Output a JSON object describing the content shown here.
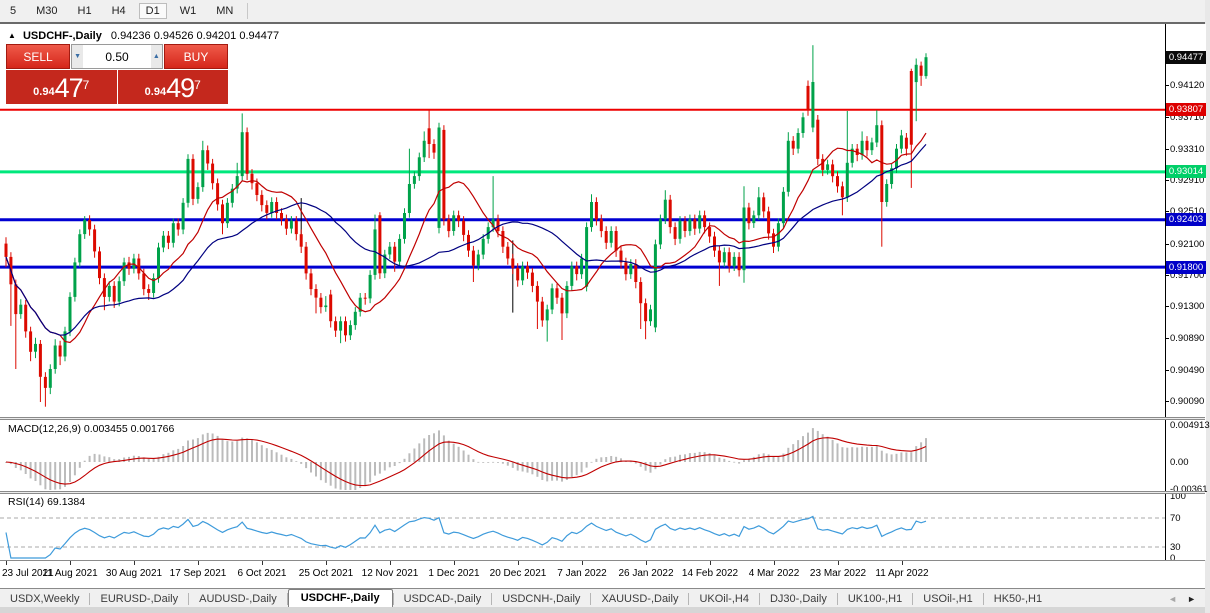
{
  "toolbar": {
    "timeframes": [
      {
        "label": "5",
        "active": false
      },
      {
        "label": "M30",
        "active": false
      },
      {
        "label": "H1",
        "active": false
      },
      {
        "label": "H4",
        "active": false
      },
      {
        "label": "D1",
        "active": true
      },
      {
        "label": "W1",
        "active": false
      },
      {
        "label": "MN",
        "active": false
      }
    ]
  },
  "chart": {
    "title_marker": "▲",
    "symbol_title": "USDCHF-,Daily",
    "ohlc_string": "0.94236 0.94526 0.94201 0.94477",
    "trade_panel": {
      "sell_label": "SELL",
      "buy_label": "BUY",
      "volume": "0.50",
      "down_glyph": "▼",
      "up_glyph": "▲",
      "sell_small": "0.94",
      "sell_big": "47",
      "sell_sup": "7",
      "buy_small": "0.94",
      "buy_big": "49",
      "buy_sup": "7"
    }
  },
  "chart_data": {
    "type": "candlestick+indicators",
    "symbol": "USDCHF-",
    "timeframe": "Daily",
    "current_bar": {
      "open": 0.94236,
      "high": 0.94526,
      "low": 0.94201,
      "close": 0.94477
    },
    "y_range": [
      0.8985,
      0.949
    ],
    "price_axis_ticks": [
      "0.94120",
      "0.93710",
      "0.93310",
      "0.92910",
      "0.92510",
      "0.92100",
      "0.91700",
      "0.91300",
      "0.90890",
      "0.90490",
      "0.90090"
    ],
    "price_badges": [
      {
        "text": "0.94477",
        "price": 0.94477,
        "bg": "#0a0a0a"
      },
      {
        "text": "0.93807",
        "price": 0.93807,
        "bg": "#dd0000"
      },
      {
        "text": "0.93014",
        "price": 0.93014,
        "bg": "#00cf68"
      },
      {
        "text": "0.92403",
        "price": 0.92403,
        "bg": "#0000c8"
      },
      {
        "text": "0.91800",
        "price": 0.918,
        "bg": "#0000c8"
      }
    ],
    "hlines": [
      {
        "price": 0.93807,
        "color": "#ee0000",
        "width": 2
      },
      {
        "price": 0.93014,
        "color": "#00e87c",
        "width": 3
      },
      {
        "price": 0.92403,
        "color": "#0000d2",
        "width": 3
      },
      {
        "price": 0.918,
        "color": "#0000d2",
        "width": 3
      }
    ],
    "vline_segments": [
      {
        "x_index": 60,
        "p1": 0.9268,
        "p2": 0.9215
      },
      {
        "x_index": 103,
        "p1": 0.9214,
        "p2": 0.9122
      }
    ],
    "colors": {
      "bull": "#00a24a",
      "bear": "#dc0a00",
      "ma_fast": "#c00000",
      "ma_slow": "#000080",
      "macd_hist": "#bbbbbb",
      "macd_signal": "#c00000",
      "rsi_line": "#3e9bdb"
    },
    "ma_periods": {
      "fast": 12,
      "slow": 30
    },
    "x_tick_labels": [
      "23 Jul 2021",
      "11 Aug 2021",
      "30 Aug 2021",
      "17 Sep 2021",
      "6 Oct 2021",
      "25 Oct 2021",
      "12 Nov 2021",
      "1 Dec 2021",
      "20 Dec 2021",
      "7 Jan 2022",
      "26 Jan 2022",
      "14 Feb 2022",
      "4 Mar 2022",
      "23 Mar 2022",
      "11 Apr 2022"
    ],
    "macd": {
      "label": "MACD(12,26,9) 0.003455 0.001766",
      "params": [
        12,
        26,
        9
      ],
      "current_values": [
        "0.003455",
        "0.001766"
      ],
      "scale_labels": [
        "0.004913",
        "0.00",
        "-0.00361"
      ]
    },
    "rsi": {
      "label": "RSI(14) 69.1384",
      "period": 14,
      "current_value": "69.1384",
      "levels": [
        100,
        70,
        30,
        0
      ]
    },
    "candles": [
      [
        0.921,
        0.9218,
        0.918,
        0.9193
      ],
      [
        0.9193,
        0.9199,
        0.9105,
        0.9158
      ],
      [
        0.9158,
        0.9164,
        0.905,
        0.912
      ],
      [
        0.912,
        0.9139,
        0.9114,
        0.9132
      ],
      [
        0.9132,
        0.9138,
        0.909,
        0.9098
      ],
      [
        0.9098,
        0.9104,
        0.906,
        0.9072
      ],
      [
        0.9072,
        0.909,
        0.9064,
        0.9082
      ],
      [
        0.9082,
        0.9087,
        0.9008,
        0.904
      ],
      [
        0.904,
        0.9046,
        0.9002,
        0.9026
      ],
      [
        0.9026,
        0.9056,
        0.9018,
        0.905
      ],
      [
        0.905,
        0.9088,
        0.9044,
        0.908
      ],
      [
        0.908,
        0.9086,
        0.9055,
        0.9066
      ],
      [
        0.9066,
        0.9104,
        0.906,
        0.9098
      ],
      [
        0.9098,
        0.9148,
        0.9092,
        0.9142
      ],
      [
        0.9142,
        0.9192,
        0.9136,
        0.9186
      ],
      [
        0.9186,
        0.9228,
        0.918,
        0.9222
      ],
      [
        0.9222,
        0.9245,
        0.9216,
        0.924
      ],
      [
        0.924,
        0.9246,
        0.922,
        0.9228
      ],
      [
        0.9228,
        0.9234,
        0.9192,
        0.92
      ],
      [
        0.92,
        0.9206,
        0.9158,
        0.9166
      ],
      [
        0.9166,
        0.9172,
        0.9125,
        0.9142
      ],
      [
        0.9142,
        0.9162,
        0.9136,
        0.9156
      ],
      [
        0.9156,
        0.9162,
        0.9128,
        0.9136
      ],
      [
        0.9136,
        0.9168,
        0.913,
        0.9162
      ],
      [
        0.9162,
        0.9192,
        0.9156,
        0.9186
      ],
      [
        0.9186,
        0.9193,
        0.917,
        0.9178
      ],
      [
        0.9178,
        0.9197,
        0.9172,
        0.9191
      ],
      [
        0.9191,
        0.9197,
        0.9164,
        0.9172
      ],
      [
        0.9172,
        0.9178,
        0.9144,
        0.9152
      ],
      [
        0.9152,
        0.9158,
        0.9138,
        0.9147
      ],
      [
        0.9147,
        0.9172,
        0.9141,
        0.9166
      ],
      [
        0.9166,
        0.9211,
        0.916,
        0.9205
      ],
      [
        0.9205,
        0.9226,
        0.9199,
        0.922
      ],
      [
        0.922,
        0.9226,
        0.9203,
        0.9211
      ],
      [
        0.9211,
        0.9242,
        0.9205,
        0.9236
      ],
      [
        0.9236,
        0.9242,
        0.922,
        0.9228
      ],
      [
        0.9228,
        0.9268,
        0.9222,
        0.9262
      ],
      [
        0.9262,
        0.9324,
        0.9256,
        0.9318
      ],
      [
        0.9318,
        0.9324,
        0.9259,
        0.9267
      ],
      [
        0.9267,
        0.9288,
        0.9261,
        0.9282
      ],
      [
        0.9282,
        0.9341,
        0.9276,
        0.9329
      ],
      [
        0.9329,
        0.9335,
        0.9304,
        0.9312
      ],
      [
        0.9312,
        0.9318,
        0.9279,
        0.9287
      ],
      [
        0.9287,
        0.9293,
        0.9252,
        0.926
      ],
      [
        0.926,
        0.9266,
        0.9222,
        0.9236
      ],
      [
        0.9236,
        0.9268,
        0.923,
        0.9262
      ],
      [
        0.9262,
        0.9286,
        0.9256,
        0.928
      ],
      [
        0.928,
        0.9313,
        0.9274,
        0.9296
      ],
      [
        0.9296,
        0.9376,
        0.929,
        0.9352
      ],
      [
        0.9352,
        0.9358,
        0.9291,
        0.9299
      ],
      [
        0.9299,
        0.9305,
        0.9279,
        0.9287
      ],
      [
        0.9287,
        0.9293,
        0.9264,
        0.9272
      ],
      [
        0.9272,
        0.9278,
        0.9251,
        0.9259
      ],
      [
        0.9259,
        0.9265,
        0.9241,
        0.9249
      ],
      [
        0.9249,
        0.9269,
        0.9243,
        0.9263
      ],
      [
        0.9263,
        0.9269,
        0.9241,
        0.9249
      ],
      [
        0.9249,
        0.9255,
        0.9233,
        0.9241
      ],
      [
        0.9241,
        0.9247,
        0.9221,
        0.9229
      ],
      [
        0.9229,
        0.9245,
        0.9223,
        0.9239
      ],
      [
        0.9239,
        0.9245,
        0.9214,
        0.9222
      ],
      [
        0.9222,
        0.9228,
        0.9198,
        0.9206
      ],
      [
        0.9206,
        0.9212,
        0.9164,
        0.9172
      ],
      [
        0.9172,
        0.9178,
        0.9144,
        0.9152
      ],
      [
        0.9152,
        0.9158,
        0.9121,
        0.9141
      ],
      [
        0.9141,
        0.9147,
        0.9121,
        0.9129
      ],
      [
        0.9129,
        0.9143,
        0.9123,
        0.9131
      ],
      [
        0.9145,
        0.9151,
        0.9103,
        0.9111
      ],
      [
        0.9111,
        0.9117,
        0.9091,
        0.9099
      ],
      [
        0.9099,
        0.9117,
        0.9083,
        0.9111
      ],
      [
        0.9111,
        0.9117,
        0.9085,
        0.9093
      ],
      [
        0.9093,
        0.9112,
        0.9087,
        0.9106
      ],
      [
        0.9106,
        0.9129,
        0.91,
        0.9123
      ],
      [
        0.9123,
        0.9147,
        0.9117,
        0.9141
      ],
      [
        0.9141,
        0.9147,
        0.9132,
        0.914
      ],
      [
        0.914,
        0.9176,
        0.9134,
        0.917
      ],
      [
        0.917,
        0.9247,
        0.9164,
        0.9228
      ],
      [
        0.9246,
        0.925,
        0.9165,
        0.9172
      ],
      [
        0.9172,
        0.9202,
        0.9166,
        0.9196
      ],
      [
        0.9196,
        0.9212,
        0.919,
        0.9206
      ],
      [
        0.9206,
        0.9212,
        0.9174,
        0.9187
      ],
      [
        0.9187,
        0.9222,
        0.9181,
        0.9216
      ],
      [
        0.9216,
        0.9255,
        0.921,
        0.9249
      ],
      [
        0.9249,
        0.9331,
        0.9243,
        0.9286
      ],
      [
        0.9286,
        0.9302,
        0.928,
        0.9296
      ],
      [
        0.9296,
        0.9326,
        0.929,
        0.932
      ],
      [
        0.932,
        0.9353,
        0.9314,
        0.9341
      ],
      [
        0.9357,
        0.9381,
        0.9319,
        0.9337
      ],
      [
        0.9337,
        0.9343,
        0.9318,
        0.9326
      ],
      [
        0.923,
        0.9364,
        0.9223,
        0.9358
      ],
      [
        0.9355,
        0.9361,
        0.9233,
        0.9241
      ],
      [
        0.9241,
        0.9247,
        0.9218,
        0.9226
      ],
      [
        0.9226,
        0.9252,
        0.922,
        0.9246
      ],
      [
        0.9246,
        0.9252,
        0.9231,
        0.9239
      ],
      [
        0.9239,
        0.9245,
        0.9213,
        0.9221
      ],
      [
        0.9221,
        0.9227,
        0.9193,
        0.9201
      ],
      [
        0.9201,
        0.9207,
        0.9161,
        0.9182
      ],
      [
        0.9182,
        0.9202,
        0.9176,
        0.9196
      ],
      [
        0.9196,
        0.9222,
        0.919,
        0.9216
      ],
      [
        0.9216,
        0.9237,
        0.921,
        0.9231
      ],
      [
        0.9231,
        0.9296,
        0.9225,
        0.9241
      ],
      [
        0.9241,
        0.9247,
        0.9218,
        0.9226
      ],
      [
        0.9226,
        0.9232,
        0.9198,
        0.9206
      ],
      [
        0.9206,
        0.9212,
        0.9183,
        0.9191
      ],
      [
        0.9191,
        0.9197,
        0.9171,
        0.9179
      ],
      [
        0.9179,
        0.9185,
        0.9155,
        0.9163
      ],
      [
        0.9163,
        0.9187,
        0.9157,
        0.9181
      ],
      [
        0.9181,
        0.9187,
        0.9165,
        0.9173
      ],
      [
        0.9173,
        0.9179,
        0.9148,
        0.9156
      ],
      [
        0.9156,
        0.9162,
        0.9101,
        0.9136
      ],
      [
        0.9136,
        0.9142,
        0.9104,
        0.9112
      ],
      [
        0.9112,
        0.9132,
        0.9085,
        0.9126
      ],
      [
        0.9126,
        0.9159,
        0.912,
        0.9153
      ],
      [
        0.9153,
        0.9159,
        0.9133,
        0.9141
      ],
      [
        0.9141,
        0.9147,
        0.9087,
        0.9121
      ],
      [
        0.9121,
        0.9162,
        0.9115,
        0.9156
      ],
      [
        0.9156,
        0.9187,
        0.915,
        0.9181
      ],
      [
        0.9181,
        0.9187,
        0.9163,
        0.9171
      ],
      [
        0.9171,
        0.9197,
        0.9165,
        0.9191
      ],
      [
        0.9155,
        0.9237,
        0.9149,
        0.9231
      ],
      [
        0.9231,
        0.9273,
        0.9225,
        0.9263
      ],
      [
        0.9263,
        0.9269,
        0.9233,
        0.9241
      ],
      [
        0.9241,
        0.9247,
        0.9218,
        0.9226
      ],
      [
        0.9226,
        0.9232,
        0.9203,
        0.9211
      ],
      [
        0.9211,
        0.9232,
        0.9205,
        0.9226
      ],
      [
        0.9226,
        0.9232,
        0.9193,
        0.9201
      ],
      [
        0.9201,
        0.9207,
        0.9178,
        0.9186
      ],
      [
        0.9186,
        0.9192,
        0.9163,
        0.9171
      ],
      [
        0.9171,
        0.919,
        0.9165,
        0.9184
      ],
      [
        0.9184,
        0.919,
        0.9153,
        0.9161
      ],
      [
        0.9161,
        0.9167,
        0.9101,
        0.9134
      ],
      [
        0.9134,
        0.914,
        0.9088,
        0.9111
      ],
      [
        0.9111,
        0.9132,
        0.9105,
        0.9126
      ],
      [
        0.9103,
        0.9215,
        0.9097,
        0.9209
      ],
      [
        0.9209,
        0.9247,
        0.9203,
        0.9241
      ],
      [
        0.9241,
        0.9278,
        0.9235,
        0.9266
      ],
      [
        0.9266,
        0.9272,
        0.9223,
        0.9231
      ],
      [
        0.9231,
        0.9237,
        0.9208,
        0.9216
      ],
      [
        0.9216,
        0.9245,
        0.921,
        0.9239
      ],
      [
        0.9239,
        0.9245,
        0.9218,
        0.9226
      ],
      [
        0.9226,
        0.9247,
        0.922,
        0.9241
      ],
      [
        0.9241,
        0.9247,
        0.9221,
        0.9229
      ],
      [
        0.9229,
        0.9252,
        0.9223,
        0.9246
      ],
      [
        0.9246,
        0.9252,
        0.9223,
        0.9231
      ],
      [
        0.9231,
        0.9237,
        0.9211,
        0.9219
      ],
      [
        0.9219,
        0.9225,
        0.9193,
        0.9201
      ],
      [
        0.9201,
        0.9207,
        0.9156,
        0.9186
      ],
      [
        0.9186,
        0.9205,
        0.918,
        0.9199
      ],
      [
        0.9199,
        0.9205,
        0.9173,
        0.9181
      ],
      [
        0.9181,
        0.9199,
        0.9175,
        0.9193
      ],
      [
        0.9193,
        0.9199,
        0.9168,
        0.9176
      ],
      [
        0.9176,
        0.9283,
        0.916,
        0.9256
      ],
      [
        0.9256,
        0.9262,
        0.9228,
        0.9236
      ],
      [
        0.9236,
        0.9252,
        0.923,
        0.9246
      ],
      [
        0.9246,
        0.9282,
        0.924,
        0.9269
      ],
      [
        0.9269,
        0.9275,
        0.9243,
        0.9251
      ],
      [
        0.9251,
        0.9257,
        0.9215,
        0.9223
      ],
      [
        0.9223,
        0.9229,
        0.9198,
        0.9206
      ],
      [
        0.9206,
        0.9242,
        0.92,
        0.9236
      ],
      [
        0.9236,
        0.9282,
        0.923,
        0.9276
      ],
      [
        0.9276,
        0.9352,
        0.927,
        0.9341
      ],
      [
        0.9341,
        0.9347,
        0.9323,
        0.9331
      ],
      [
        0.9331,
        0.9357,
        0.9325,
        0.9351
      ],
      [
        0.9351,
        0.9377,
        0.9345,
        0.9371
      ],
      [
        0.9411,
        0.9418,
        0.9373,
        0.9381
      ],
      [
        0.9358,
        0.9463,
        0.9352,
        0.9416
      ],
      [
        0.9368,
        0.9374,
        0.931,
        0.9318
      ],
      [
        0.9318,
        0.9324,
        0.9296,
        0.9304
      ],
      [
        0.9304,
        0.9317,
        0.9298,
        0.9311
      ],
      [
        0.9311,
        0.9317,
        0.9288,
        0.9296
      ],
      [
        0.9296,
        0.9302,
        0.9275,
        0.9283
      ],
      [
        0.9283,
        0.9289,
        0.9246,
        0.9269
      ],
      [
        0.9269,
        0.9379,
        0.9263,
        0.9313
      ],
      [
        0.9313,
        0.9337,
        0.9307,
        0.9331
      ],
      [
        0.9331,
        0.9337,
        0.9315,
        0.9323
      ],
      [
        0.9323,
        0.9353,
        0.9317,
        0.9341
      ],
      [
        0.9341,
        0.9347,
        0.9321,
        0.9329
      ],
      [
        0.9329,
        0.9345,
        0.9323,
        0.9339
      ],
      [
        0.9339,
        0.938,
        0.9333,
        0.9361
      ],
      [
        0.9361,
        0.9367,
        0.9206,
        0.9263
      ],
      [
        0.9263,
        0.9292,
        0.9257,
        0.9286
      ],
      [
        0.9286,
        0.9312,
        0.928,
        0.9306
      ],
      [
        0.9306,
        0.9337,
        0.93,
        0.9331
      ],
      [
        0.9331,
        0.9355,
        0.9325,
        0.9348
      ],
      [
        0.9345,
        0.9351,
        0.9322,
        0.9331
      ],
      [
        0.943,
        0.9433,
        0.9281,
        0.9336
      ],
      [
        0.9416,
        0.9446,
        0.9366,
        0.9438
      ],
      [
        0.9437,
        0.9442,
        0.9411,
        0.9424
      ],
      [
        0.94236,
        0.94526,
        0.94201,
        0.94477
      ]
    ]
  },
  "tab_bar": {
    "tabs": [
      {
        "label": "USDX,Weekly",
        "active": false
      },
      {
        "label": "EURUSD-,Daily",
        "active": false
      },
      {
        "label": "AUDUSD-,Daily",
        "active": false
      },
      {
        "label": "USDCHF-,Daily",
        "active": true
      },
      {
        "label": "USDCAD-,Daily",
        "active": false
      },
      {
        "label": "USDCNH-,Daily",
        "active": false
      },
      {
        "label": "XAUUSD-,Daily",
        "active": false
      },
      {
        "label": "UKOil-,H4",
        "active": false
      },
      {
        "label": "DJ30-,Daily",
        "active": false
      },
      {
        "label": "UK100-,H1",
        "active": false
      },
      {
        "label": "USOil-,H1",
        "active": false
      },
      {
        "label": "HK50-,H1",
        "active": false
      }
    ],
    "left_arrow": "◄",
    "right_arrow": "►"
  }
}
